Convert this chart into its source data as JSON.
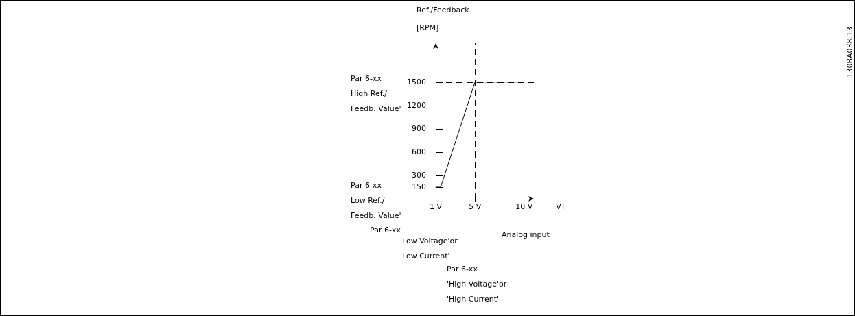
{
  "chart_data": {
    "type": "line",
    "xlabel": "[V]",
    "ylabel": "Ref./Feedback\n[RPM]",
    "x": [
      1,
      1.5,
      5,
      10
    ],
    "series": [
      {
        "color": "#000000",
        "values": [
          150,
          150,
          1500,
          1500
        ]
      }
    ],
    "xlim": [
      1,
      11
    ],
    "xticks": [
      {
        "value": 1,
        "label": "1 V"
      },
      {
        "value": 5,
        "label": "5 V"
      },
      {
        "value": 10,
        "label": "10 V"
      }
    ],
    "ylim": [
      0,
      2000
    ],
    "yticks": [
      150,
      300,
      600,
      900,
      1200,
      1500
    ],
    "grid": false,
    "marker": "none",
    "line_style": "solid",
    "ref_lines": [
      {
        "axis": "y",
        "value": 1500,
        "line_style": "dashed",
        "color": "#000000"
      },
      {
        "axis": "x",
        "value": 5,
        "line_style": "dashed",
        "color": "#000000"
      },
      {
        "axis": "x",
        "value": 10,
        "line_style": "dashed",
        "color": "#000000"
      }
    ],
    "annotations": [
      "Par 6-xx\nHigh Ref./\nFeedb. Value'",
      "Par 6-xx\nLow Ref./\nFeedb. Value'",
      "Par 6-xx",
      "'Low Voltage'or\n'Low Current'",
      "Par 6-xx\n'High Voltage'or\n'High Current'",
      "Analog input",
      "130BA038.13"
    ]
  }
}
